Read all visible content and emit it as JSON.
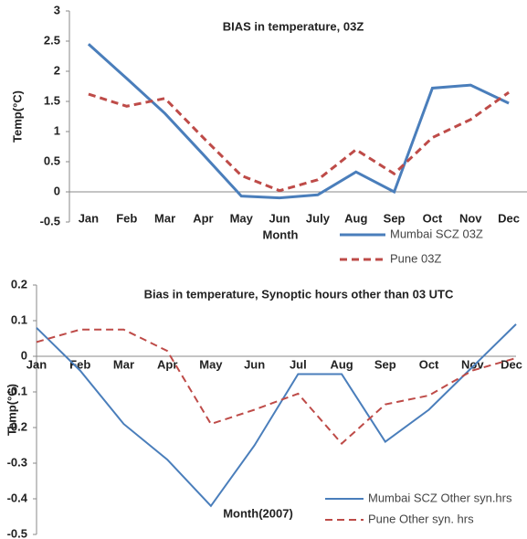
{
  "chart_data": [
    {
      "type": "line",
      "title": "BIAS in temperature, 03Z",
      "x_label": "Month",
      "y_label": "Temp(°C)",
      "categories": [
        "Jan",
        "Feb",
        "Mar",
        "Apr",
        "May",
        "Jun",
        "July",
        "Aug",
        "Sep",
        "Oct",
        "Nov",
        "Dec"
      ],
      "series": [
        {
          "name": "Mumbai SCZ 03Z",
          "color": "#4a7ebb",
          "values": [
            2.45,
            1.88,
            1.3,
            0.62,
            -0.07,
            -0.1,
            -0.05,
            0.33,
            0.0,
            1.72,
            1.77,
            1.47
          ]
        },
        {
          "name": "Pune 03Z",
          "color": "#be4b48",
          "dashed": true,
          "values": [
            1.62,
            1.42,
            1.55,
            0.9,
            0.27,
            0.02,
            0.2,
            0.7,
            0.3,
            0.9,
            1.2,
            1.65
          ]
        }
      ],
      "ylim": [
        -0.5,
        3
      ],
      "yticks": [
        -0.5,
        0,
        0.5,
        1,
        1.5,
        2,
        2.5,
        3
      ],
      "grid": false
    },
    {
      "type": "line",
      "title": "Bias in temperature, Synoptic hours other than 03 UTC",
      "x_label": "Month(2007)",
      "y_label": "Temp(°C)",
      "categories": [
        "Jan",
        "Feb",
        "Mar",
        "Apr",
        "May",
        "Jun",
        "Jul",
        "Aug",
        "Sep",
        "Oct",
        "Nov",
        "Dec"
      ],
      "series": [
        {
          "name": "Mumbai SCZ Other syn.hrs",
          "color": "#4a7ebb",
          "values": [
            0.08,
            -0.04,
            -0.19,
            -0.29,
            -0.42,
            -0.25,
            -0.05,
            -0.05,
            -0.24,
            -0.15,
            -0.03,
            0.09
          ]
        },
        {
          "name": "Pune Other syn. hrs",
          "color": "#be4b48",
          "dashed": true,
          "values": [
            0.04,
            0.075,
            0.075,
            0.015,
            -0.19,
            -0.15,
            -0.105,
            -0.245,
            -0.135,
            -0.11,
            -0.04,
            -0.005
          ]
        }
      ],
      "ylim": [
        -0.5,
        0.2
      ],
      "yticks": [
        -0.5,
        -0.4,
        -0.3,
        -0.2,
        -0.1,
        0,
        0.1,
        0.2
      ],
      "grid": false
    }
  ]
}
